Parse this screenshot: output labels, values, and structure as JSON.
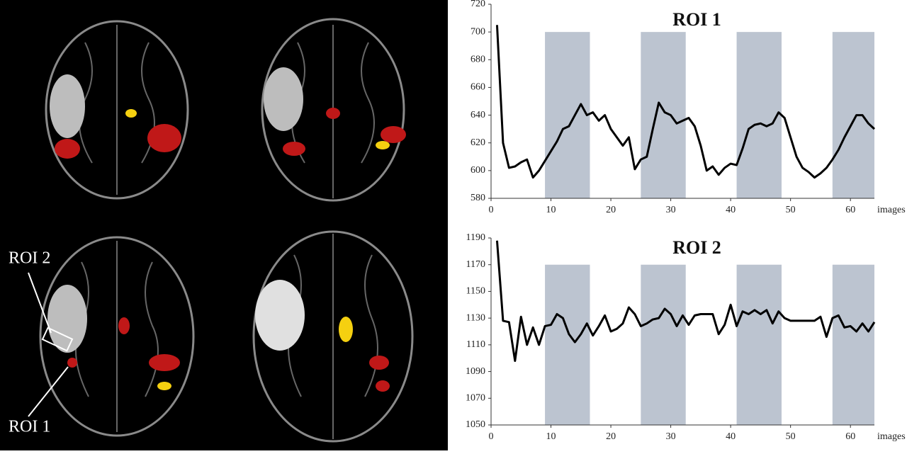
{
  "image_panel": {
    "labels": [
      "ROI 2",
      "ROI 1"
    ]
  },
  "chart_data": [
    {
      "type": "line",
      "title": "ROI 1",
      "x_label": "images",
      "xlim": [
        0,
        64
      ],
      "xticks": [
        0,
        10,
        20,
        30,
        40,
        50,
        60
      ],
      "ylim": [
        580,
        720
      ],
      "yticks": [
        580,
        600,
        620,
        640,
        660,
        680,
        700,
        720
      ],
      "shade_ranges": [
        [
          9,
          16.5
        ],
        [
          25,
          32.5
        ],
        [
          41,
          48.5
        ],
        [
          57,
          64
        ]
      ],
      "shade_top": 700,
      "shade_color": "#bcc4d0",
      "x": [
        1,
        2,
        3,
        4,
        5,
        6,
        7,
        8,
        9,
        10,
        11,
        12,
        13,
        14,
        15,
        16,
        17,
        18,
        19,
        20,
        21,
        22,
        23,
        24,
        25,
        26,
        27,
        28,
        29,
        30,
        31,
        32,
        33,
        34,
        35,
        36,
        37,
        38,
        39,
        40,
        41,
        42,
        43,
        44,
        45,
        46,
        47,
        48,
        49,
        50,
        51,
        52,
        53,
        54,
        55,
        56,
        57,
        58,
        59,
        60,
        61,
        62,
        63,
        64
      ],
      "series": [
        {
          "color": "#000000",
          "values": [
            705,
            620,
            602,
            603,
            606,
            608,
            595,
            600,
            607,
            614,
            621,
            630,
            632,
            640,
            648,
            640,
            642,
            636,
            640,
            630,
            624,
            618,
            624,
            601,
            608,
            610,
            630,
            649,
            642,
            640,
            634,
            636,
            638,
            632,
            618,
            600,
            603,
            597,
            602,
            605,
            604,
            616,
            630,
            633,
            634,
            632,
            634,
            642,
            638,
            624,
            610,
            602,
            599,
            595,
            598,
            602,
            608,
            615,
            624,
            632,
            640,
            640,
            634,
            630
          ]
        }
      ]
    },
    {
      "type": "line",
      "title": "ROI 2",
      "x_label": "images",
      "xlim": [
        0,
        64
      ],
      "xticks": [
        0,
        10,
        20,
        30,
        40,
        50,
        60
      ],
      "ylim": [
        1050,
        1190
      ],
      "yticks": [
        1050,
        1070,
        1090,
        1110,
        1130,
        1150,
        1170,
        1190
      ],
      "shade_ranges": [
        [
          9,
          16.5
        ],
        [
          25,
          32.5
        ],
        [
          41,
          48.5
        ],
        [
          57,
          64
        ]
      ],
      "shade_top": 1170,
      "shade_color": "#bcc4d0",
      "x": [
        1,
        2,
        3,
        4,
        5,
        6,
        7,
        8,
        9,
        10,
        11,
        12,
        13,
        14,
        15,
        16,
        17,
        18,
        19,
        20,
        21,
        22,
        23,
        24,
        25,
        26,
        27,
        28,
        29,
        30,
        31,
        32,
        33,
        34,
        35,
        36,
        37,
        38,
        39,
        40,
        41,
        42,
        43,
        44,
        45,
        46,
        47,
        48,
        49,
        50,
        51,
        52,
        53,
        54,
        55,
        56,
        57,
        58,
        59,
        60,
        61,
        62,
        63,
        64
      ],
      "series": [
        {
          "color": "#000000",
          "values": [
            1188,
            1128,
            1127,
            1098,
            1131,
            1110,
            1123,
            1110,
            1124,
            1125,
            1133,
            1130,
            1118,
            1112,
            1118,
            1126,
            1117,
            1124,
            1132,
            1120,
            1122,
            1126,
            1138,
            1133,
            1124,
            1126,
            1129,
            1130,
            1137,
            1133,
            1124,
            1132,
            1125,
            1132,
            1133,
            1133,
            1133,
            1118,
            1125,
            1140,
            1124,
            1135,
            1133,
            1136,
            1133,
            1136,
            1126,
            1135,
            1130,
            1128,
            1128,
            1128,
            1128,
            1128,
            1131,
            1116,
            1130,
            1132,
            1123,
            1124,
            1120,
            1126,
            1120,
            1127
          ]
        }
      ]
    }
  ]
}
